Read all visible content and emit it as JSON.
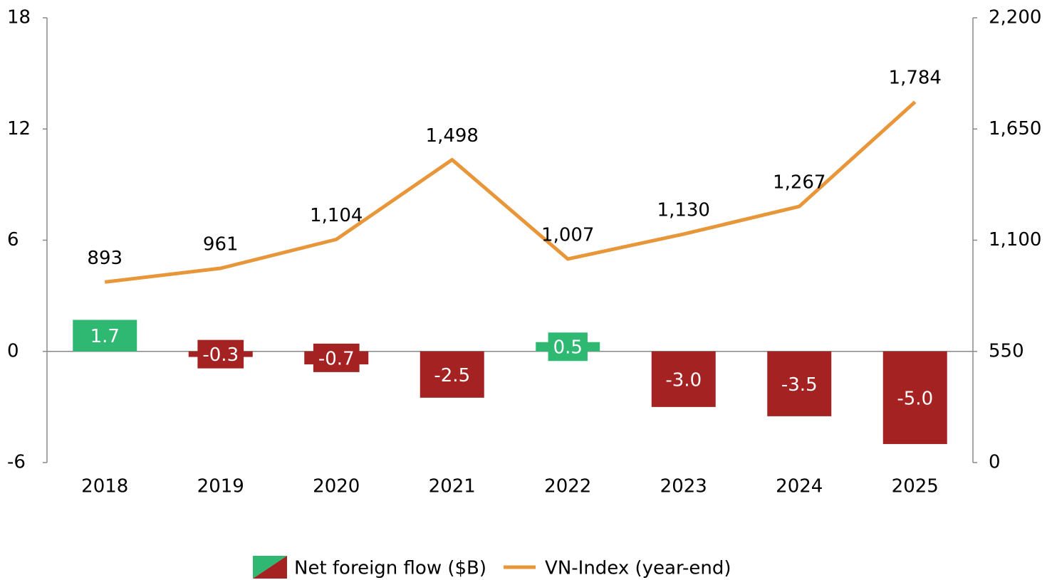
{
  "chart_data": {
    "type": "bar-line",
    "categories": [
      "2018",
      "2019",
      "2020",
      "2021",
      "2022",
      "2023",
      "2024",
      "2025"
    ],
    "series": [
      {
        "name": "Net foreign flow ($B)",
        "type": "bar",
        "axis": "y",
        "colors": [
          "#2eb872",
          "#a52222",
          "#a52222",
          "#a52222",
          "#2eb872",
          "#a52222",
          "#a52222",
          "#a52222"
        ],
        "values": [
          1.7,
          -0.3,
          -0.7,
          -2.5,
          0.5,
          -3.0,
          -3.5,
          -5.0
        ],
        "value_labels": [
          "1.7",
          "-0.3",
          "-0.7",
          "-2.5",
          "0.5",
          "-3.0",
          "-3.5",
          "-5.0"
        ]
      },
      {
        "name": "VN-Index (year-end)",
        "type": "line",
        "axis": "y2",
        "color": "#e8963a",
        "values": [
          893,
          961,
          1104,
          1498,
          1007,
          1130,
          1267,
          1784
        ],
        "value_labels": [
          "893",
          "961",
          "1,104",
          "1,498",
          "1,007",
          "1,130",
          "1,267",
          "1,784"
        ]
      }
    ],
    "ylim": [
      -6,
      18
    ],
    "yticks": [
      -6,
      0,
      6,
      12,
      18
    ],
    "y2lim": [
      0,
      2200
    ],
    "y2ticks": [
      0,
      550,
      {
        "value": 1100,
        "label": "1,100"
      },
      {
        "value": 1650,
        "label": "1,650"
      },
      {
        "value": 2200,
        "label": "2,200"
      }
    ],
    "legend": "bottom"
  }
}
